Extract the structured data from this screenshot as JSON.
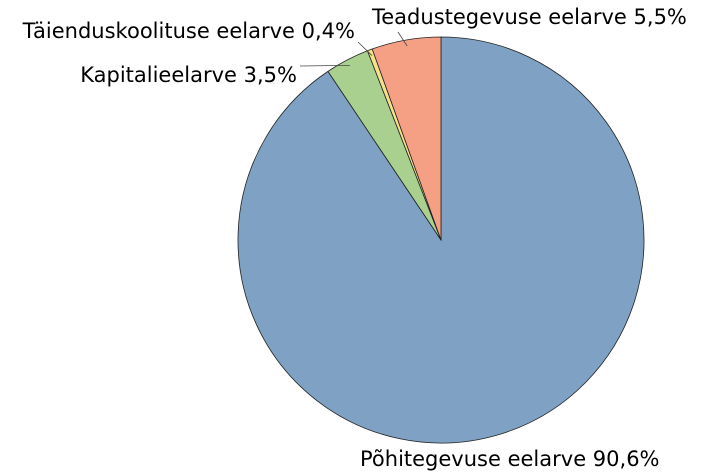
{
  "chart_data": {
    "type": "pie",
    "categories": [
      "Põhitegevuse eelarve",
      "Kapitalieelarve",
      "Täienduskoolituse eelarve",
      "Teadustegevuse eelarve"
    ],
    "values": [
      90.6,
      3.5,
      0.4,
      5.5
    ],
    "value_labels": [
      "90,6%",
      "3,5%",
      "0,4%",
      "5,5%"
    ],
    "colors": [
      "#7ea1c4",
      "#a9d08e",
      "#f5e08c",
      "#f5a085"
    ]
  }
}
